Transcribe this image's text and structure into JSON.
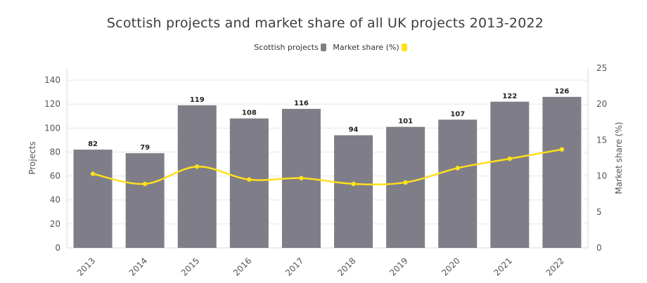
{
  "chart_data": {
    "type": "bar",
    "title": "Scottish projects and market share of all UK projects 2013-2022",
    "categories": [
      "2013",
      "2014",
      "2015",
      "2016",
      "2017",
      "2018",
      "2019",
      "2020",
      "2021",
      "2022"
    ],
    "series": [
      {
        "name": "Scottish projects",
        "type": "bar",
        "axis": "left",
        "color": "#7f7e88",
        "values": [
          82,
          79,
          119,
          108,
          116,
          94,
          101,
          107,
          122,
          126
        ]
      },
      {
        "name": "Market share (%)",
        "type": "line",
        "axis": "right",
        "color": "#ffe01b",
        "values": [
          10.3,
          8.9,
          11.3,
          9.5,
          9.7,
          8.9,
          9.1,
          11.1,
          12.4,
          13.7
        ]
      }
    ],
    "ylabel": "Projects",
    "y2label": "Market share (%)",
    "ylim": [
      0,
      150
    ],
    "y2lim": [
      0,
      25
    ],
    "yticks": [
      0,
      20,
      40,
      60,
      80,
      100,
      120,
      140
    ],
    "y2ticks": [
      0,
      5,
      10,
      15,
      20,
      25
    ],
    "legend_position": "top-center",
    "grid": true
  }
}
